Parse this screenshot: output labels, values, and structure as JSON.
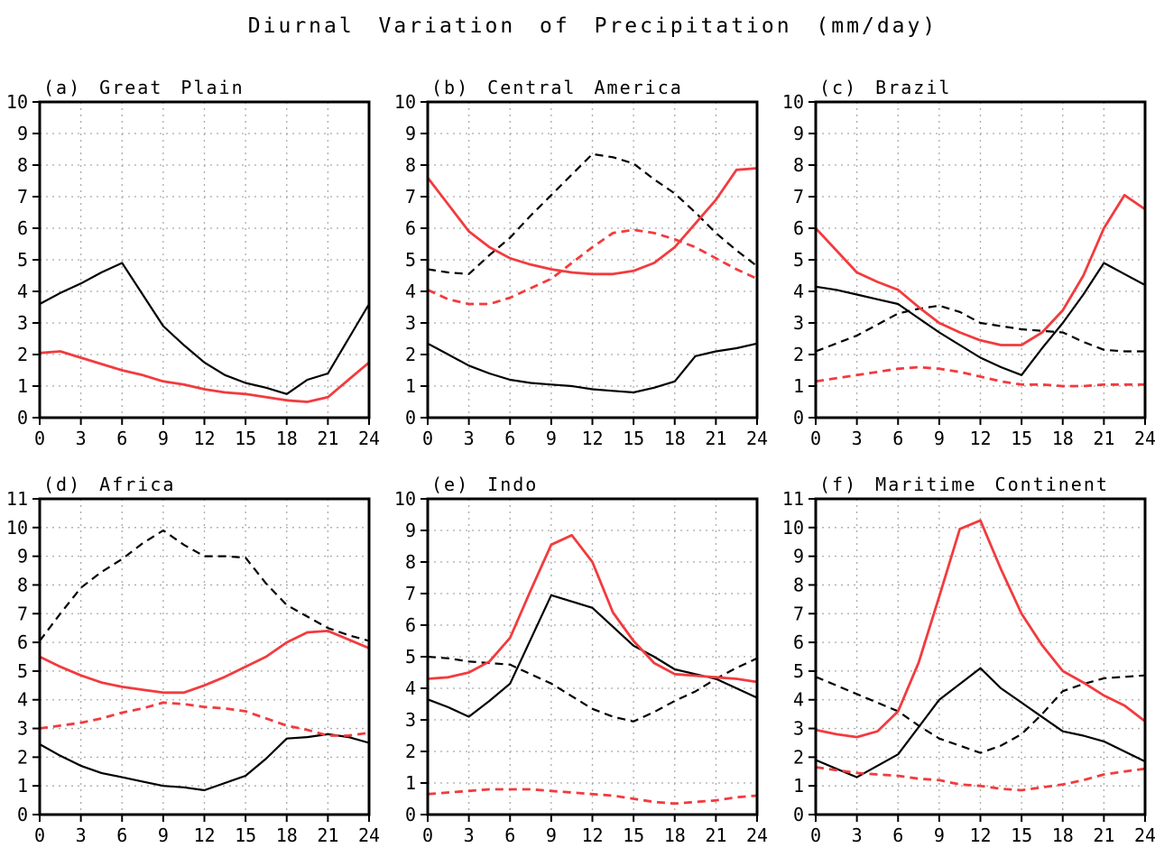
{
  "figure": {
    "title": "Diurnal Variation of Precipitation (mm/day)",
    "colors": {
      "black": "#000000",
      "red": "#f23b3e",
      "grid": "#aaaaaa",
      "background": "#ffffff"
    }
  },
  "chart_data": [
    {
      "type": "line",
      "panel": "a",
      "title": "(a) Great Plain",
      "x": [
        0,
        1.5,
        3,
        4.5,
        6,
        7.5,
        9,
        10.5,
        12,
        13.5,
        15,
        16.5,
        18,
        19.5,
        21,
        22.5,
        24
      ],
      "xticks": [
        0,
        3,
        6,
        9,
        12,
        15,
        18,
        21,
        24
      ],
      "ylim": [
        0,
        10
      ],
      "grid": true,
      "legend": "none",
      "series": [
        {
          "name": "black solid",
          "color": "black",
          "style": "solid",
          "values": [
            3.6,
            3.95,
            4.25,
            4.6,
            4.9,
            3.9,
            2.9,
            2.3,
            1.75,
            1.35,
            1.1,
            0.95,
            0.75,
            1.2,
            1.4,
            2.5,
            3.6
          ]
        },
        {
          "name": "red solid",
          "color": "red",
          "style": "solid",
          "values": [
            2.05,
            2.1,
            1.9,
            1.7,
            1.5,
            1.35,
            1.15,
            1.05,
            0.9,
            0.8,
            0.75,
            0.65,
            0.55,
            0.5,
            0.65,
            1.2,
            1.75
          ]
        }
      ]
    },
    {
      "type": "line",
      "panel": "b",
      "title": "(b) Central America",
      "x": [
        0,
        1.5,
        3,
        4.5,
        6,
        7.5,
        9,
        10.5,
        12,
        13.5,
        15,
        16.5,
        18,
        19.5,
        21,
        22.5,
        24
      ],
      "xticks": [
        0,
        3,
        6,
        9,
        12,
        15,
        18,
        21,
        24
      ],
      "ylim": [
        0,
        10
      ],
      "grid": true,
      "legend": "none",
      "series": [
        {
          "name": "black solid",
          "color": "black",
          "style": "solid",
          "values": [
            2.35,
            2.0,
            1.65,
            1.4,
            1.2,
            1.1,
            1.05,
            1.0,
            0.9,
            0.85,
            0.8,
            0.95,
            1.15,
            1.95,
            2.1,
            2.2,
            2.35
          ]
        },
        {
          "name": "black dashed",
          "color": "black",
          "style": "dashed",
          "values": [
            4.7,
            4.6,
            4.55,
            5.15,
            5.7,
            6.4,
            7.05,
            7.7,
            8.35,
            8.25,
            8.05,
            7.55,
            7.1,
            6.5,
            5.85,
            5.3,
            4.8
          ]
        },
        {
          "name": "red dashed",
          "color": "red",
          "style": "dashed",
          "values": [
            4.05,
            3.75,
            3.6,
            3.6,
            3.8,
            4.1,
            4.4,
            4.9,
            5.4,
            5.85,
            5.95,
            5.85,
            5.65,
            5.4,
            5.05,
            4.7,
            4.4
          ]
        },
        {
          "name": "red solid",
          "color": "red",
          "style": "solid",
          "values": [
            7.6,
            6.75,
            5.9,
            5.4,
            5.05,
            4.85,
            4.7,
            4.6,
            4.55,
            4.55,
            4.65,
            4.9,
            5.4,
            6.15,
            6.9,
            7.85,
            7.9
          ]
        }
      ]
    },
    {
      "type": "line",
      "panel": "c",
      "title": "(c) Brazil",
      "x": [
        0,
        1.5,
        3,
        4.5,
        6,
        7.5,
        9,
        10.5,
        12,
        13.5,
        15,
        16.5,
        18,
        19.5,
        21,
        22.5,
        24
      ],
      "xticks": [
        0,
        3,
        6,
        9,
        12,
        15,
        18,
        21,
        24
      ],
      "ylim": [
        0,
        10
      ],
      "grid": true,
      "legend": "none",
      "series": [
        {
          "name": "black solid",
          "color": "black",
          "style": "solid",
          "values": [
            4.15,
            4.05,
            3.9,
            3.75,
            3.6,
            3.15,
            2.7,
            2.3,
            1.9,
            1.6,
            1.35,
            2.2,
            3.0,
            3.9,
            4.9,
            4.55,
            4.2
          ]
        },
        {
          "name": "black dashed",
          "color": "black",
          "style": "dashed",
          "values": [
            2.1,
            2.35,
            2.6,
            2.95,
            3.3,
            3.45,
            3.55,
            3.35,
            3.0,
            2.9,
            2.8,
            2.75,
            2.7,
            2.4,
            2.15,
            2.1,
            2.1
          ]
        },
        {
          "name": "red dashed",
          "color": "red",
          "style": "dashed",
          "values": [
            1.15,
            1.25,
            1.35,
            1.45,
            1.55,
            1.6,
            1.55,
            1.45,
            1.3,
            1.15,
            1.05,
            1.05,
            1.0,
            1.0,
            1.05,
            1.05,
            1.05
          ]
        },
        {
          "name": "red solid",
          "color": "red",
          "style": "solid",
          "values": [
            6.0,
            5.3,
            4.6,
            4.3,
            4.05,
            3.5,
            3.0,
            2.7,
            2.45,
            2.3,
            2.3,
            2.7,
            3.4,
            4.5,
            6.0,
            7.05,
            6.6
          ]
        }
      ]
    },
    {
      "type": "line",
      "panel": "d",
      "title": "(d) Africa",
      "x": [
        0,
        1.5,
        3,
        4.5,
        6,
        7.5,
        9,
        10.5,
        12,
        13.5,
        15,
        16.5,
        18,
        19.5,
        21,
        22.5,
        24
      ],
      "xticks": [
        0,
        3,
        6,
        9,
        12,
        15,
        18,
        21,
        24
      ],
      "ylim": [
        0,
        11
      ],
      "grid": true,
      "legend": "none",
      "series": [
        {
          "name": "black solid",
          "color": "black",
          "style": "solid",
          "values": [
            2.45,
            2.05,
            1.7,
            1.45,
            1.3,
            1.15,
            1.0,
            0.95,
            0.85,
            1.1,
            1.35,
            1.95,
            2.65,
            2.7,
            2.8,
            2.7,
            2.5
          ]
        },
        {
          "name": "black dashed",
          "color": "black",
          "style": "dashed",
          "values": [
            6.05,
            7.0,
            7.9,
            8.45,
            8.9,
            9.45,
            9.9,
            9.4,
            9.0,
            9.0,
            8.95,
            8.05,
            7.3,
            6.9,
            6.5,
            6.25,
            6.05
          ]
        },
        {
          "name": "red dashed",
          "color": "red",
          "style": "dashed",
          "values": [
            3.0,
            3.1,
            3.2,
            3.35,
            3.55,
            3.7,
            3.9,
            3.85,
            3.75,
            3.7,
            3.6,
            3.35,
            3.1,
            2.95,
            2.75,
            2.75,
            2.85
          ]
        },
        {
          "name": "red solid",
          "color": "red",
          "style": "solid",
          "values": [
            5.5,
            5.15,
            4.85,
            4.6,
            4.45,
            4.35,
            4.25,
            4.25,
            4.5,
            4.8,
            5.15,
            5.5,
            6.0,
            6.35,
            6.4,
            6.1,
            5.8
          ]
        }
      ]
    },
    {
      "type": "line",
      "panel": "e",
      "title": "(e) Indo",
      "x": [
        0,
        1.5,
        3,
        4.5,
        6,
        7.5,
        9,
        10.5,
        12,
        13.5,
        15,
        16.5,
        18,
        19.5,
        21,
        22.5,
        24
      ],
      "xticks": [
        0,
        3,
        6,
        9,
        12,
        15,
        18,
        21,
        24
      ],
      "ylim": [
        0,
        10
      ],
      "grid": true,
      "legend": "none",
      "series": [
        {
          "name": "black solid",
          "color": "black",
          "style": "solid",
          "values": [
            3.65,
            3.4,
            3.1,
            3.6,
            4.15,
            5.55,
            6.95,
            6.75,
            6.55,
            5.95,
            5.35,
            5.0,
            4.6,
            4.45,
            4.3,
            4.0,
            3.7
          ]
        },
        {
          "name": "black dashed",
          "color": "black",
          "style": "dashed",
          "values": [
            5.0,
            4.95,
            4.85,
            4.8,
            4.75,
            4.45,
            4.15,
            3.75,
            3.35,
            3.1,
            2.95,
            3.25,
            3.6,
            3.9,
            4.3,
            4.65,
            4.95
          ]
        },
        {
          "name": "red dashed",
          "color": "red",
          "style": "dashed",
          "values": [
            0.65,
            0.7,
            0.75,
            0.8,
            0.8,
            0.8,
            0.75,
            0.7,
            0.65,
            0.6,
            0.5,
            0.4,
            0.35,
            0.4,
            0.45,
            0.55,
            0.6
          ]
        },
        {
          "name": "red solid",
          "color": "red",
          "style": "solid",
          "values": [
            4.3,
            4.35,
            4.5,
            4.85,
            5.6,
            7.1,
            8.55,
            8.85,
            8.0,
            6.4,
            5.5,
            4.8,
            4.45,
            4.4,
            4.35,
            4.3,
            4.2
          ]
        }
      ]
    },
    {
      "type": "line",
      "panel": "f",
      "title": "(f) Maritime Continent",
      "x": [
        0,
        1.5,
        3,
        4.5,
        6,
        7.5,
        9,
        10.5,
        12,
        13.5,
        15,
        16.5,
        18,
        19.5,
        21,
        22.5,
        24
      ],
      "xticks": [
        0,
        3,
        6,
        9,
        12,
        15,
        18,
        21,
        24
      ],
      "ylim": [
        0,
        11
      ],
      "grid": true,
      "legend": "none",
      "series": [
        {
          "name": "black solid",
          "color": "black",
          "style": "solid",
          "values": [
            1.9,
            1.6,
            1.3,
            1.7,
            2.1,
            3.05,
            4.0,
            4.55,
            5.1,
            4.4,
            3.9,
            3.4,
            2.9,
            2.75,
            2.55,
            2.2,
            1.85
          ]
        },
        {
          "name": "black dashed",
          "color": "black",
          "style": "dashed",
          "values": [
            4.8,
            4.5,
            4.2,
            3.9,
            3.6,
            3.1,
            2.65,
            2.4,
            2.15,
            2.4,
            2.8,
            3.5,
            4.3,
            4.55,
            4.75,
            4.8,
            4.85
          ]
        },
        {
          "name": "red dashed",
          "color": "red",
          "style": "dashed",
          "values": [
            1.65,
            1.55,
            1.45,
            1.4,
            1.35,
            1.25,
            1.2,
            1.05,
            1.0,
            0.9,
            0.85,
            0.95,
            1.05,
            1.2,
            1.4,
            1.5,
            1.6
          ]
        },
        {
          "name": "red solid",
          "color": "red",
          "style": "solid",
          "values": [
            2.95,
            2.8,
            2.7,
            2.9,
            3.6,
            5.3,
            7.6,
            9.95,
            10.25,
            8.55,
            7.0,
            5.9,
            5.0,
            4.6,
            4.15,
            3.8,
            3.25
          ]
        }
      ]
    }
  ]
}
